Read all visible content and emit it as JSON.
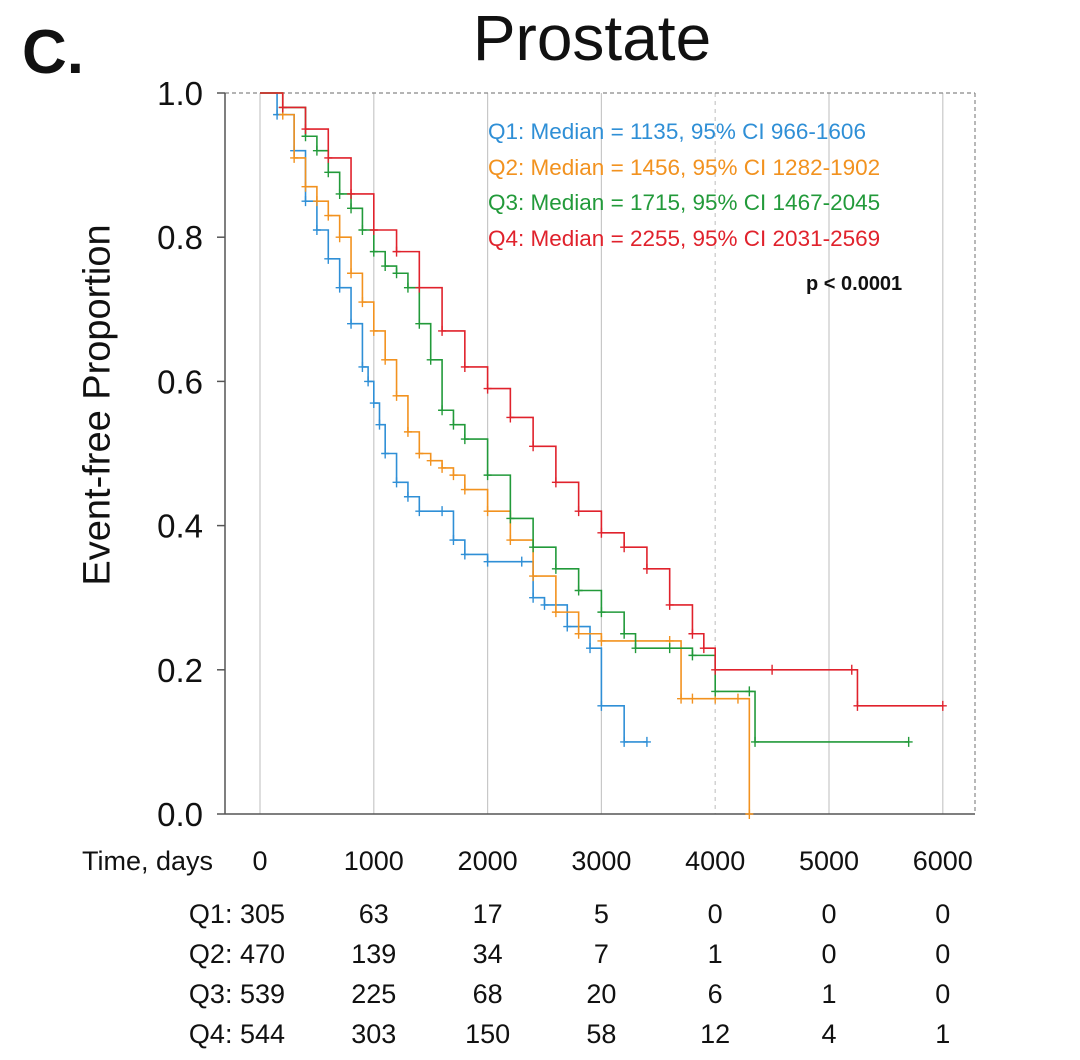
{
  "panel_letter": "C.",
  "colors": {
    "Q1": "#2f8fd6",
    "Q2": "#f2921f",
    "Q3": "#229a3a",
    "Q4": "#e0222c",
    "grid": "#c8c8c8",
    "axis": "#555555"
  },
  "chart_data": {
    "type": "line",
    "title": "Prostate",
    "xlabel": "Time, days",
    "ylabel": "Event-free Proportion",
    "xlim": [
      -300,
      6300
    ],
    "ylim": [
      0,
      1.0
    ],
    "x_ticks": [
      "0",
      "1000",
      "2000",
      "3000",
      "4000",
      "5000",
      "6000"
    ],
    "y_ticks": [
      "0.0",
      "0.2",
      "0.4",
      "0.6",
      "0.8",
      "1.0"
    ],
    "grid": "vertical",
    "legend_position": "top-right",
    "p_value": "p < 0.0001",
    "legend": [
      "Q1: Median = 1135, 95% CI 966-1606",
      "Q2: Median = 1456, 95% CI 1282-1902",
      "Q3: Median = 1715, 95% CI 1467-2045",
      "Q4: Median = 2255, 95% CI 2031-2569"
    ],
    "series": [
      {
        "name": "Q1",
        "points": [
          [
            0,
            1.0
          ],
          [
            150,
            0.97
          ],
          [
            300,
            0.92
          ],
          [
            400,
            0.85
          ],
          [
            500,
            0.81
          ],
          [
            600,
            0.77
          ],
          [
            700,
            0.73
          ],
          [
            800,
            0.68
          ],
          [
            900,
            0.62
          ],
          [
            950,
            0.6
          ],
          [
            1000,
            0.57
          ],
          [
            1050,
            0.54
          ],
          [
            1100,
            0.5
          ],
          [
            1200,
            0.46
          ],
          [
            1300,
            0.44
          ],
          [
            1400,
            0.42
          ],
          [
            1600,
            0.42
          ],
          [
            1700,
            0.38
          ],
          [
            1800,
            0.36
          ],
          [
            2000,
            0.35
          ],
          [
            2300,
            0.35
          ],
          [
            2400,
            0.3
          ],
          [
            2500,
            0.29
          ],
          [
            2700,
            0.26
          ],
          [
            2900,
            0.23
          ],
          [
            3000,
            0.15
          ],
          [
            3200,
            0.1
          ],
          [
            3400,
            0.1
          ]
        ]
      },
      {
        "name": "Q2",
        "points": [
          [
            0,
            1.0
          ],
          [
            200,
            0.97
          ],
          [
            300,
            0.91
          ],
          [
            400,
            0.87
          ],
          [
            500,
            0.85
          ],
          [
            600,
            0.83
          ],
          [
            700,
            0.8
          ],
          [
            800,
            0.75
          ],
          [
            900,
            0.71
          ],
          [
            1000,
            0.67
          ],
          [
            1100,
            0.63
          ],
          [
            1200,
            0.58
          ],
          [
            1300,
            0.53
          ],
          [
            1400,
            0.5
          ],
          [
            1500,
            0.49
          ],
          [
            1600,
            0.48
          ],
          [
            1700,
            0.47
          ],
          [
            1800,
            0.45
          ],
          [
            2000,
            0.42
          ],
          [
            2200,
            0.38
          ],
          [
            2400,
            0.33
          ],
          [
            2600,
            0.28
          ],
          [
            2800,
            0.25
          ],
          [
            3000,
            0.24
          ],
          [
            3600,
            0.24
          ],
          [
            3700,
            0.16
          ],
          [
            3800,
            0.16
          ],
          [
            4000,
            0.16
          ],
          [
            4200,
            0.16
          ],
          [
            4300,
            0.0
          ]
        ]
      },
      {
        "name": "Q3",
        "points": [
          [
            0,
            1.0
          ],
          [
            200,
            0.98
          ],
          [
            400,
            0.94
          ],
          [
            500,
            0.92
          ],
          [
            600,
            0.89
          ],
          [
            700,
            0.86
          ],
          [
            800,
            0.84
          ],
          [
            900,
            0.81
          ],
          [
            1000,
            0.78
          ],
          [
            1100,
            0.76
          ],
          [
            1200,
            0.75
          ],
          [
            1300,
            0.73
          ],
          [
            1400,
            0.68
          ],
          [
            1500,
            0.63
          ],
          [
            1600,
            0.56
          ],
          [
            1700,
            0.54
          ],
          [
            1800,
            0.52
          ],
          [
            2000,
            0.47
          ],
          [
            2200,
            0.41
          ],
          [
            2400,
            0.37
          ],
          [
            2600,
            0.34
          ],
          [
            2800,
            0.31
          ],
          [
            3000,
            0.28
          ],
          [
            3200,
            0.25
          ],
          [
            3300,
            0.23
          ],
          [
            3600,
            0.23
          ],
          [
            3800,
            0.22
          ],
          [
            4000,
            0.17
          ],
          [
            4300,
            0.17
          ],
          [
            4350,
            0.1
          ],
          [
            5700,
            0.1
          ]
        ]
      },
      {
        "name": "Q4",
        "points": [
          [
            0,
            1.0
          ],
          [
            200,
            0.98
          ],
          [
            400,
            0.95
          ],
          [
            600,
            0.91
          ],
          [
            800,
            0.86
          ],
          [
            1000,
            0.81
          ],
          [
            1200,
            0.78
          ],
          [
            1400,
            0.73
          ],
          [
            1600,
            0.67
          ],
          [
            1800,
            0.62
          ],
          [
            2000,
            0.59
          ],
          [
            2200,
            0.55
          ],
          [
            2400,
            0.51
          ],
          [
            2600,
            0.46
          ],
          [
            2800,
            0.42
          ],
          [
            3000,
            0.39
          ],
          [
            3200,
            0.37
          ],
          [
            3400,
            0.34
          ],
          [
            3600,
            0.29
          ],
          [
            3800,
            0.25
          ],
          [
            3900,
            0.23
          ],
          [
            4000,
            0.2
          ],
          [
            4500,
            0.2
          ],
          [
            5200,
            0.2
          ],
          [
            5250,
            0.15
          ],
          [
            6000,
            0.15
          ]
        ]
      }
    ],
    "risk_table": {
      "columns": [
        "0",
        "1000",
        "2000",
        "3000",
        "4000",
        "5000",
        "6000"
      ],
      "rows": [
        {
          "label": "Q1: 305",
          "values": [
            "63",
            "17",
            "5",
            "0",
            "0",
            "0"
          ]
        },
        {
          "label": "Q2: 470",
          "values": [
            "139",
            "34",
            "7",
            "1",
            "0",
            "0"
          ]
        },
        {
          "label": "Q3: 539",
          "values": [
            "225",
            "68",
            "20",
            "6",
            "1",
            "0"
          ]
        },
        {
          "label": "Q4: 544",
          "values": [
            "303",
            "150",
            "58",
            "12",
            "4",
            "1"
          ]
        }
      ]
    }
  }
}
